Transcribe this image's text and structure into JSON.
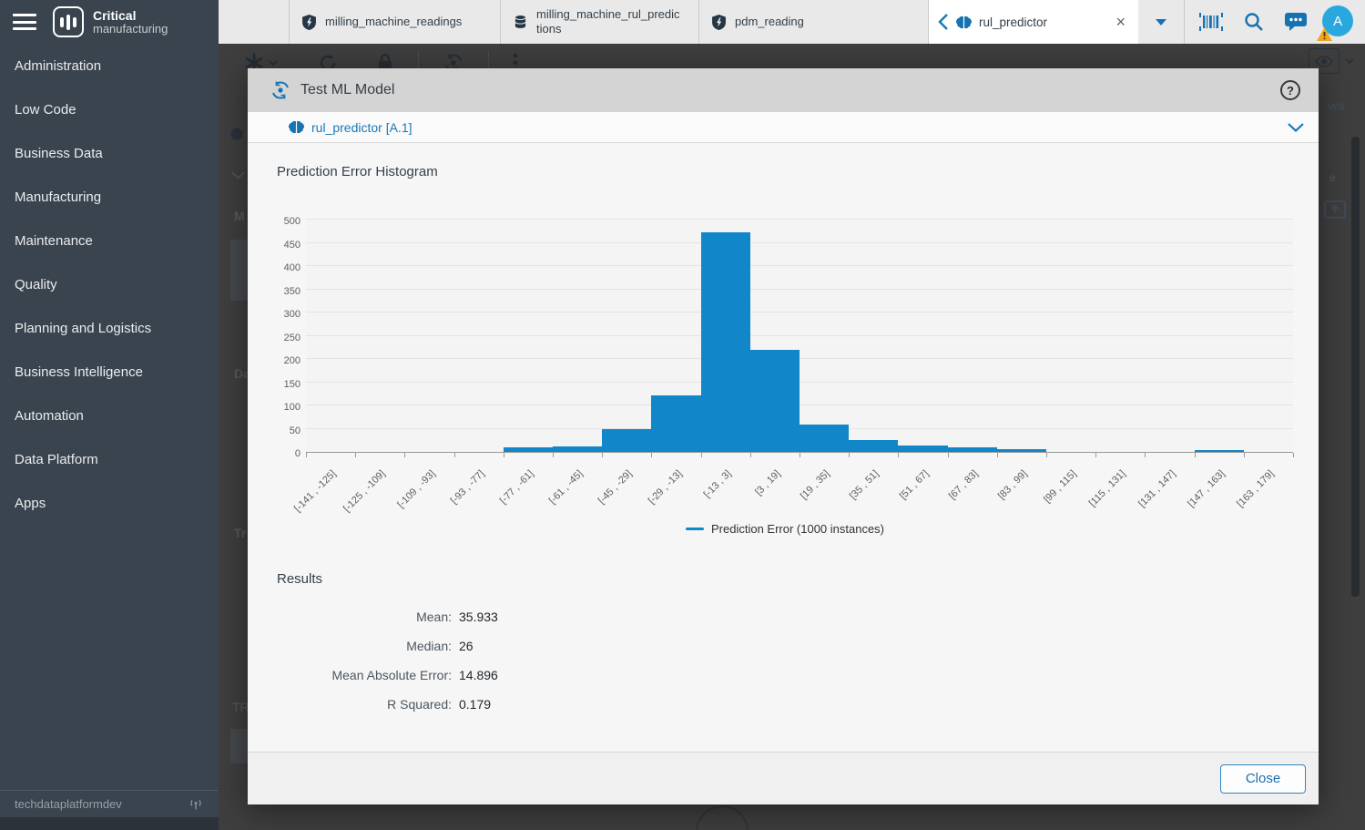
{
  "brand": {
    "line1": "Critical",
    "line2": "manufacturing"
  },
  "sidebar": {
    "items": [
      "Administration",
      "Low Code",
      "Business Data",
      "Manufacturing",
      "Maintenance",
      "Quality",
      "Planning and Logistics",
      "Business Intelligence",
      "Automation",
      "Data Platform",
      "Apps"
    ],
    "footer": "techdataplatformdev"
  },
  "tabs": {
    "items": [
      {
        "label": "milling_machine_readings",
        "icon": "shield-bolt-icon"
      },
      {
        "label": "milling_machine_rul_predictions",
        "icon": "database-icon"
      },
      {
        "label": "pdm_reading",
        "icon": "shield-bolt-icon"
      },
      {
        "label": "rul_predictor",
        "icon": "brain-icon",
        "active": true
      }
    ],
    "close_glyph": "×"
  },
  "topbar_icons": [
    "caret-down",
    "barcode",
    "search",
    "chat",
    "avatar"
  ],
  "avatar": {
    "initial": "A"
  },
  "background_fragments": {
    "left": [
      "M",
      "Da",
      "Tr",
      "TR"
    ],
    "right": [
      "ws",
      "e"
    ]
  },
  "modal": {
    "title": "Test ML Model",
    "help_glyph": "?",
    "model_link": "rul_predictor [A.1]",
    "section_title": "Prediction Error Histogram",
    "results_title": "Results",
    "results": [
      {
        "label": "Mean:",
        "value": "35.933"
      },
      {
        "label": "Median:",
        "value": "26"
      },
      {
        "label": "Mean Absolute Error:",
        "value": "14.896"
      },
      {
        "label": "R Squared:",
        "value": "0.179"
      }
    ],
    "close_label": "Close"
  },
  "chart_data": {
    "type": "bar",
    "title": "Prediction Error Histogram",
    "categories": [
      "[-141 , -125]",
      "[-125 , -109]",
      "[-109 , -93]",
      "[-93 , -77]",
      "[-77 , -61]",
      "[-61 , -45]",
      "[-45 , -29]",
      "[-29 , -13]",
      "[-13 , 3]",
      "[3 , 19]",
      "[19 , 35]",
      "[35 , 51]",
      "[51 , 67]",
      "[67 , 83]",
      "[83 , 99]",
      "[99 , 115]",
      "[115 , 131]",
      "[131 , 147]",
      "[147 , 163]",
      "[163 , 179]"
    ],
    "values": [
      0,
      0,
      0,
      0,
      9,
      12,
      50,
      122,
      473,
      219,
      58,
      25,
      13,
      10,
      5,
      0,
      0,
      0,
      4,
      0
    ],
    "series_label": "Prediction Error (1000 instances)",
    "xlabel": "",
    "ylabel": "",
    "ylim": [
      0,
      500
    ],
    "ytick_step": 50,
    "grid": true,
    "legend_position": "bottom-center",
    "bar_color": "#1186C8"
  },
  "colors": {
    "accent_blue": "#1779B8",
    "bar_blue": "#1186C8",
    "sidebar_bg": "#3A444E",
    "avatar_blue": "#29A7DF",
    "warning_orange": "#F0A71F",
    "modal_header_gray": "#D4D4D4"
  }
}
